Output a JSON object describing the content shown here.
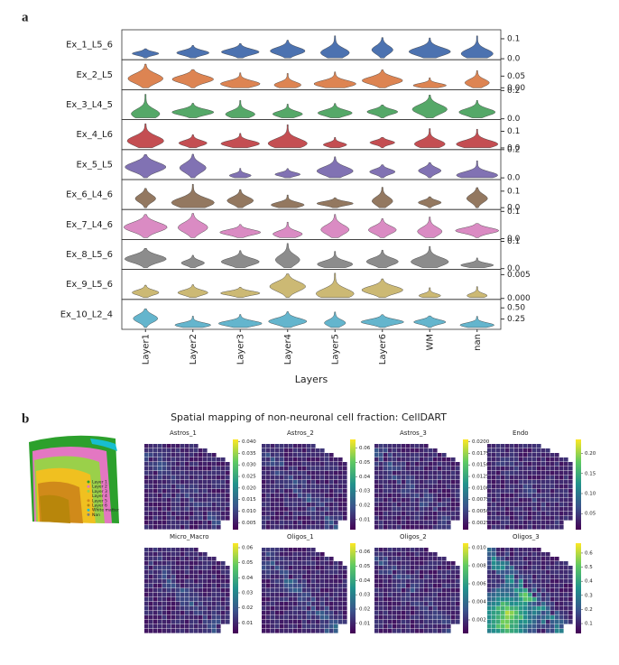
{
  "figure_labels": [
    "a",
    "b"
  ],
  "chart_data": [
    {
      "type": "violin",
      "x_label": "Layers",
      "categories": [
        "Layer1",
        "Layer2",
        "Layer3",
        "Layer4",
        "Layer5",
        "Layer6",
        "WM",
        "nan"
      ],
      "rows": [
        {
          "name": "Ex_1_L5_6",
          "color": "#4c72b0",
          "ylim": [
            -0.005,
            0.145
          ],
          "yticks": [
            0.1,
            {
              "value": 0,
              "label": "0.0"
            }
          ]
        },
        {
          "name": "Ex_2_L5",
          "color": "#dd8452",
          "ylim": [
            -0.008,
            0.12
          ],
          "yticks": [
            0.05,
            {
              "value": 0,
              "label": "0.00"
            }
          ]
        },
        {
          "name": "Ex_3_L4_5",
          "color": "#55a868",
          "ylim": [
            -0.006,
            0.206
          ],
          "yticks": [
            0.2,
            {
              "value": 0,
              "label": "0.0"
            }
          ]
        },
        {
          "name": "Ex_4_L6",
          "color": "#c44e52",
          "ylim": [
            -0.01,
            0.17
          ],
          "yticks": [
            0.1,
            {
              "value": 0,
              "label": "0.0"
            }
          ]
        },
        {
          "name": "Ex_5_L5",
          "color": "#8172b3",
          "ylim": [
            -0.012,
            0.2
          ],
          "yticks": [
            0.2,
            {
              "value": 0,
              "label": "0.0"
            }
          ]
        },
        {
          "name": "Ex_6_L4_6",
          "color": "#937860",
          "ylim": [
            -0.011,
            0.17
          ],
          "yticks": [
            0.1,
            {
              "value": 0,
              "label": "0.0"
            }
          ]
        },
        {
          "name": "Ex_7_L4_6",
          "color": "#da8bc3",
          "ylim": [
            -0.003,
            0.107
          ],
          "yticks": [
            0.1,
            {
              "value": 0,
              "label": "0.0"
            }
          ]
        },
        {
          "name": "Ex_8_L5_6",
          "color": "#8c8c8c",
          "ylim": [
            -0.003,
            0.107
          ],
          "yticks": [
            0.1,
            {
              "value": 0,
              "label": "0.0"
            }
          ]
        },
        {
          "name": "Ex_9_L5_6",
          "color": "#ccb974",
          "ylim": [
            -0.0002,
            0.0061
          ],
          "yticks": [
            0.005,
            {
              "value": 0,
              "label": "0.000"
            }
          ]
        },
        {
          "name": "Ex_10_L2_4",
          "color": "#64b5cd",
          "ylim": [
            0.02,
            0.69
          ],
          "yticks": [
            {
              "value": 0.5,
              "label": "0.50"
            },
            0.25
          ]
        }
      ]
    },
    {
      "type": "heatmap",
      "title": "Spatial mapping of non-neuronal cell fraction: CellDART",
      "inset_legend": [
        {
          "name": "Layer 1",
          "color": "#2ca02c"
        },
        {
          "name": "Layer 2",
          "color": "#e377c2"
        },
        {
          "name": "Layer 3",
          "color": "#9ad04a"
        },
        {
          "name": "Layer 4",
          "color": "#f0c020"
        },
        {
          "name": "Layer 5",
          "color": "#d08a1a"
        },
        {
          "name": "Layer 6",
          "color": "#b8860b"
        },
        {
          "name": "White matter",
          "color": "#17becf"
        },
        {
          "name": "Nan",
          "color": "#7f7f7f"
        }
      ],
      "panels": [
        {
          "title": "Astros_1",
          "clim": [
            0.002,
            0.041
          ],
          "ticks": [
            {
              "value": 0.04,
              "label": "0.040"
            },
            0.035,
            {
              "value": 0.03,
              "label": "0.030"
            },
            0.025,
            {
              "value": 0.02,
              "label": "0.020"
            },
            0.015,
            {
              "value": 0.01,
              "label": "0.010"
            },
            0.005
          ]
        },
        {
          "title": "Astros_2",
          "clim": [
            0.003,
            0.066
          ],
          "ticks": [
            0.06,
            0.05,
            0.04,
            0.03,
            0.02,
            0.01
          ]
        },
        {
          "title": "Astros_3",
          "clim": [
            0.001,
            0.0205
          ],
          "ticks": [
            {
              "value": 0.02,
              "label": "0.0200"
            },
            0.0175,
            {
              "value": 0.015,
              "label": "0.0150"
            },
            0.0125,
            {
              "value": 0.01,
              "label": "0.0100"
            },
            0.0075,
            {
              "value": 0.005,
              "label": "0.0050"
            },
            0.0025
          ]
        },
        {
          "title": "Endo",
          "clim": [
            0.01,
            0.235
          ],
          "ticks": [
            {
              "value": 0.2,
              "label": "0.20"
            },
            0.15,
            {
              "value": 0.1,
              "label": "0.10"
            },
            0.05
          ]
        },
        {
          "title": "Micro_Macro",
          "clim": [
            0.003,
            0.063
          ],
          "ticks": [
            0.06,
            0.05,
            0.04,
            0.03,
            0.02,
            0.01
          ]
        },
        {
          "title": "Oligos_1",
          "clim": [
            0.003,
            0.066
          ],
          "ticks": [
            0.06,
            0.05,
            0.04,
            0.03,
            0.02,
            0.01
          ]
        },
        {
          "title": "Oligos_2",
          "clim": [
            0.0005,
            0.0105
          ],
          "ticks": [
            {
              "value": 0.01,
              "label": "0.010"
            },
            0.008,
            0.006,
            0.004,
            0.002
          ]
        },
        {
          "title": "Oligos_3",
          "clim": [
            0.03,
            0.67
          ],
          "ticks": [
            0.6,
            0.5,
            0.4,
            0.3,
            0.2,
            0.1
          ]
        }
      ]
    }
  ]
}
